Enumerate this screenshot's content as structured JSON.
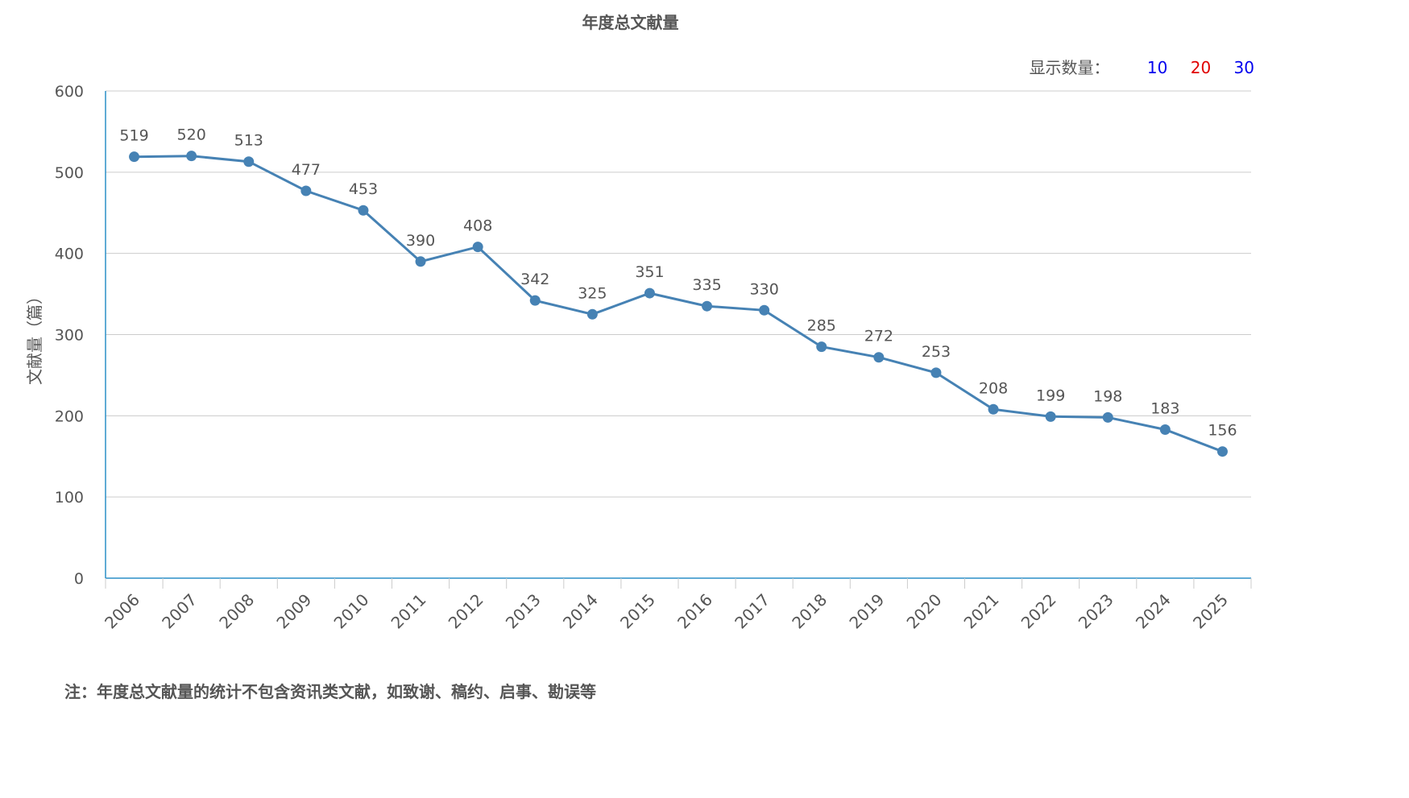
{
  "header": {
    "count_label": "显示数量：",
    "count_options": [
      "10",
      "20",
      "30"
    ]
  },
  "footnote": "注：年度总文献量的统计不包含资讯类文献，如致谢、稿约、启事、勘误等",
  "colors": {
    "line": "#4682b4",
    "axis": "#2b8fc7",
    "grid": "#cccccc",
    "text": "#555555"
  },
  "chart_data": {
    "type": "line",
    "title": "年度总文献量",
    "ylabel": "文献量（篇）",
    "xlabel": "",
    "ylim": [
      0,
      600
    ],
    "yticks": [
      0,
      100,
      200,
      300,
      400,
      500,
      600
    ],
    "grid": true,
    "categories": [
      "2006",
      "2007",
      "2008",
      "2009",
      "2010",
      "2011",
      "2012",
      "2013",
      "2014",
      "2015",
      "2016",
      "2017",
      "2018",
      "2019",
      "2020",
      "2021",
      "2022",
      "2023",
      "2024",
      "2025"
    ],
    "values": [
      519,
      520,
      513,
      477,
      453,
      390,
      408,
      342,
      325,
      351,
      335,
      330,
      285,
      272,
      253,
      208,
      199,
      198,
      183,
      156
    ]
  }
}
